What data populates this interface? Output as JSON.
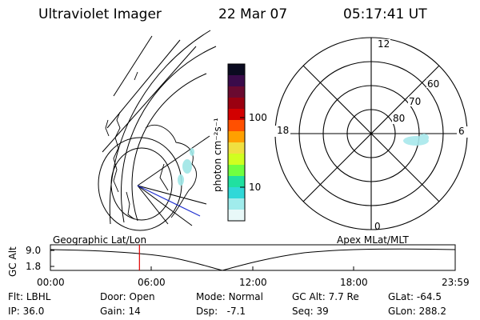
{
  "header": {
    "title": "Ultraviolet Imager",
    "date": "22 Mar 07",
    "time": "05:17:41 UT"
  },
  "colorbar": {
    "unit": "photon cm⁻²s⁻¹",
    "tick_labels": [
      "100",
      "10"
    ],
    "colors": [
      "#0b0b20",
      "#3a0b4a",
      "#6a0a30",
      "#9a0010",
      "#d20000",
      "#ff5000",
      "#ffa000",
      "#f0e040",
      "#d0ff20",
      "#70ff40",
      "#20e0a0",
      "#30d8d8",
      "#a0ecec",
      "#e8f8f8"
    ]
  },
  "polar": {
    "mlt_labels": {
      "top": "12",
      "right": "6",
      "bottom": "0",
      "left": "18"
    },
    "lat_labels": [
      "60",
      "70",
      "80"
    ]
  },
  "timeline": {
    "y_title": "GC Alt",
    "y_ticks": [
      "9.0",
      "1.8"
    ],
    "left_caption": "Geographic Lat/Lon",
    "right_caption": "Apex MLat/MLT",
    "x_ticks": [
      "00:00",
      "06:00",
      "12:00",
      "18:00",
      "23:59"
    ],
    "current_time_fraction": 0.22
  },
  "status": {
    "row1": [
      {
        "label": "Flt:",
        "value": "LBHL"
      },
      {
        "label": "Door:",
        "value": "Open"
      },
      {
        "label": "Mode:",
        "value": "Normal"
      },
      {
        "label": "GC Alt:",
        "value": "7.7 Re"
      },
      {
        "label": "GLat:",
        "value": "-64.5"
      }
    ],
    "row2": [
      {
        "label": "IP:",
        "value": "36.0"
      },
      {
        "label": "Gain:",
        "value": "14"
      },
      {
        "label": "Dsp:",
        "value": "-7.1"
      },
      {
        "label": "Seq:",
        "value": "39"
      },
      {
        "label": "GLon:",
        "value": "288.2"
      }
    ]
  }
}
